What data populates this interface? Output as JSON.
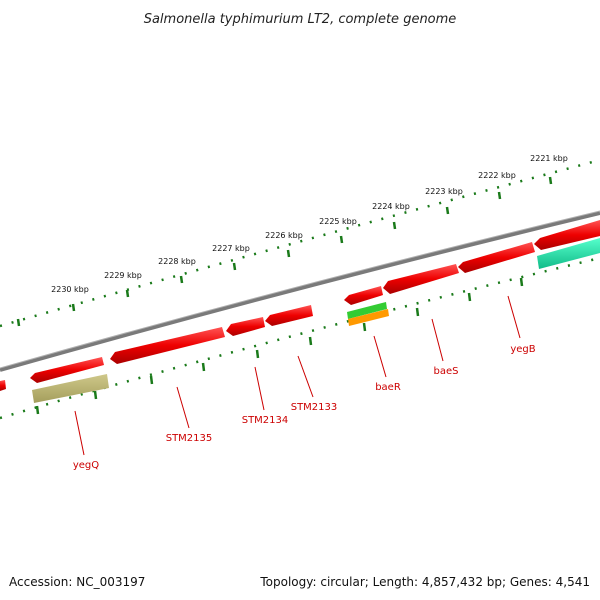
{
  "title": "Salmonella typhimurium LT2, complete genome",
  "footer": {
    "accession": "Accession: NC_003197",
    "topology": "Topology: circular; Length: 4,857,432 bp; Genes: 4,541"
  },
  "colors": {
    "backbone": "#808080",
    "cds": "#ff0000",
    "ruler": "#1a7a1a",
    "label": "#cc0000",
    "green_feature": "#33cc33",
    "orange_feature": "#ff9900",
    "olive_feature": "#b5b06e",
    "teal_feature": "#22dd99"
  },
  "ruler_labels": [
    "2230 kbp",
    "2229 kbp",
    "2228 kbp",
    "2227 kbp",
    "2226 kbp",
    "2225 kbp",
    "2224 kbp",
    "2223 kbp",
    "2222 kbp",
    "2221 kbp"
  ],
  "gene_labels": [
    "yegQ",
    "STM2135",
    "STM2134",
    "STM2133",
    "baeR",
    "baeS",
    "yegB"
  ]
}
